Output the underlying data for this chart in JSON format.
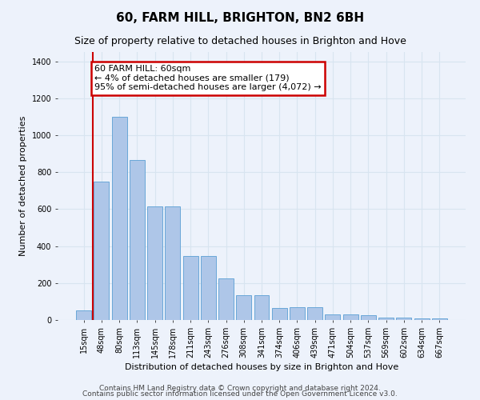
{
  "title": "60, FARM HILL, BRIGHTON, BN2 6BH",
  "subtitle": "Size of property relative to detached houses in Brighton and Hove",
  "xlabel": "Distribution of detached houses by size in Brighton and Hove",
  "ylabel": "Number of detached properties",
  "footer1": "Contains HM Land Registry data © Crown copyright and database right 2024.",
  "footer2": "Contains public sector information licensed under the Open Government Licence v3.0.",
  "bin_labels": [
    "15sqm",
    "48sqm",
    "80sqm",
    "113sqm",
    "145sqm",
    "178sqm",
    "211sqm",
    "243sqm",
    "276sqm",
    "308sqm",
    "341sqm",
    "374sqm",
    "406sqm",
    "439sqm",
    "471sqm",
    "504sqm",
    "537sqm",
    "569sqm",
    "602sqm",
    "634sqm",
    "667sqm"
  ],
  "bar_values": [
    50,
    750,
    1100,
    865,
    615,
    615,
    345,
    345,
    225,
    135,
    135,
    65,
    70,
    70,
    30,
    30,
    25,
    15,
    15,
    10,
    10
  ],
  "bar_color": "#aec6e8",
  "bar_edge_color": "#5a9fd4",
  "red_line_x": 0.5,
  "annotation_text": "60 FARM HILL: 60sqm\n← 4% of detached houses are smaller (179)\n95% of semi-detached houses are larger (4,072) →",
  "annotation_box_facecolor": "#ffffff",
  "annotation_box_edgecolor": "#cc0000",
  "ylim_max": 1450,
  "yticks": [
    0,
    200,
    400,
    600,
    800,
    1000,
    1200,
    1400
  ],
  "fig_bg_color": "#edf2fb",
  "axes_bg_color": "#edf2fb",
  "grid_color": "#d8e4f0",
  "red_line_color": "#cc0000",
  "title_fontsize": 11,
  "subtitle_fontsize": 9,
  "xlabel_fontsize": 8,
  "ylabel_fontsize": 8,
  "tick_fontsize": 7,
  "annotation_fontsize": 8,
  "footer_fontsize": 6.5
}
